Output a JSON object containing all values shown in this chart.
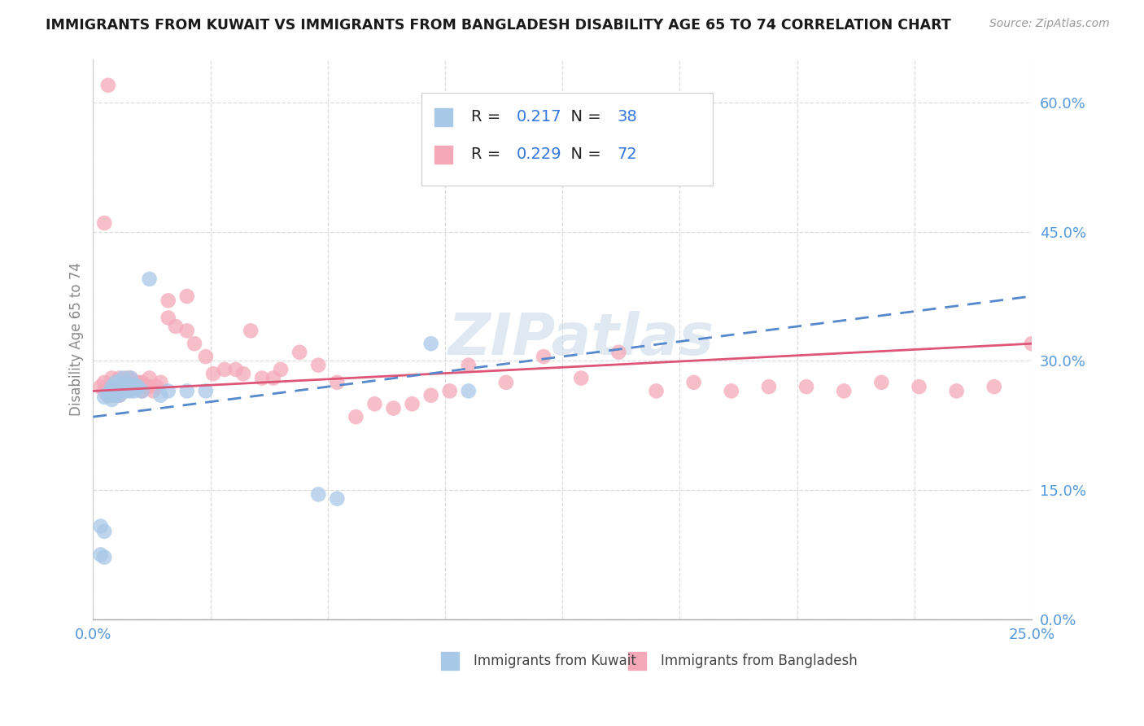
{
  "title": "IMMIGRANTS FROM KUWAIT VS IMMIGRANTS FROM BANGLADESH DISABILITY AGE 65 TO 74 CORRELATION CHART",
  "source": "Source: ZipAtlas.com",
  "ylabel": "Disability Age 65 to 74",
  "xlim": [
    0.0,
    0.25
  ],
  "ylim": [
    0.0,
    0.65
  ],
  "x_ticks": [
    0.0,
    0.03125,
    0.0625,
    0.09375,
    0.125,
    0.15625,
    0.1875,
    0.21875,
    0.25
  ],
  "x_tick_labels_show": [
    "0.0%",
    "",
    "",
    "",
    "",
    "",
    "",
    "",
    "25.0%"
  ],
  "y_ticks": [
    0.0,
    0.15,
    0.3,
    0.45,
    0.6
  ],
  "y_tick_labels": [
    "0.0%",
    "15.0%",
    "30.0%",
    "45.0%",
    "60.0%"
  ],
  "legend1_r": "0.217",
  "legend1_n": "38",
  "legend2_r": "0.229",
  "legend2_n": "72",
  "kuwait_color": "#a8c8e8",
  "bangladesh_color": "#f4a8b8",
  "kuwait_line_color": "#5588cc",
  "bangladesh_line_color": "#dd5577",
  "legend_text_color": "#1a1a2e",
  "legend_value_color": "#3377cc",
  "watermark": "ZIPatlas",
  "tick_color": "#5599dd",
  "kuwait_x": [
    0.002,
    0.003,
    0.003,
    0.004,
    0.004,
    0.005,
    0.005,
    0.005,
    0.005,
    0.006,
    0.006,
    0.006,
    0.007,
    0.007,
    0.007,
    0.008,
    0.008,
    0.008,
    0.009,
    0.009,
    0.01,
    0.01,
    0.01,
    0.011,
    0.011,
    0.012,
    0.013,
    0.015,
    0.018,
    0.02,
    0.025,
    0.03,
    0.06,
    0.065,
    0.09,
    0.1,
    0.002,
    0.003
  ],
  "kuwait_y": [
    0.075,
    0.072,
    0.258,
    0.26,
    0.262,
    0.255,
    0.265,
    0.27,
    0.26,
    0.26,
    0.27,
    0.275,
    0.26,
    0.268,
    0.275,
    0.265,
    0.27,
    0.28,
    0.265,
    0.272,
    0.265,
    0.27,
    0.28,
    0.265,
    0.272,
    0.27,
    0.265,
    0.395,
    0.26,
    0.265,
    0.265,
    0.265,
    0.145,
    0.14,
    0.32,
    0.265,
    0.108,
    0.102
  ],
  "bangladesh_x": [
    0.002,
    0.003,
    0.003,
    0.004,
    0.005,
    0.005,
    0.005,
    0.006,
    0.006,
    0.007,
    0.007,
    0.008,
    0.008,
    0.008,
    0.009,
    0.009,
    0.01,
    0.01,
    0.011,
    0.011,
    0.012,
    0.012,
    0.013,
    0.013,
    0.014,
    0.015,
    0.015,
    0.016,
    0.017,
    0.018,
    0.02,
    0.02,
    0.022,
    0.025,
    0.025,
    0.027,
    0.03,
    0.032,
    0.035,
    0.038,
    0.04,
    0.042,
    0.045,
    0.048,
    0.05,
    0.055,
    0.06,
    0.065,
    0.07,
    0.075,
    0.08,
    0.085,
    0.09,
    0.095,
    0.1,
    0.11,
    0.12,
    0.13,
    0.14,
    0.15,
    0.16,
    0.17,
    0.18,
    0.19,
    0.2,
    0.21,
    0.22,
    0.23,
    0.24,
    0.25,
    0.003,
    0.004
  ],
  "bangladesh_y": [
    0.27,
    0.265,
    0.275,
    0.26,
    0.265,
    0.27,
    0.28,
    0.265,
    0.27,
    0.26,
    0.28,
    0.27,
    0.265,
    0.275,
    0.28,
    0.27,
    0.275,
    0.28,
    0.268,
    0.275,
    0.27,
    0.275,
    0.265,
    0.275,
    0.27,
    0.27,
    0.28,
    0.265,
    0.27,
    0.275,
    0.37,
    0.35,
    0.34,
    0.375,
    0.335,
    0.32,
    0.305,
    0.285,
    0.29,
    0.29,
    0.285,
    0.335,
    0.28,
    0.28,
    0.29,
    0.31,
    0.295,
    0.275,
    0.235,
    0.25,
    0.245,
    0.25,
    0.26,
    0.265,
    0.295,
    0.275,
    0.305,
    0.28,
    0.31,
    0.265,
    0.275,
    0.265,
    0.27,
    0.27,
    0.265,
    0.275,
    0.27,
    0.265,
    0.27,
    0.32,
    0.46,
    0.62
  ]
}
